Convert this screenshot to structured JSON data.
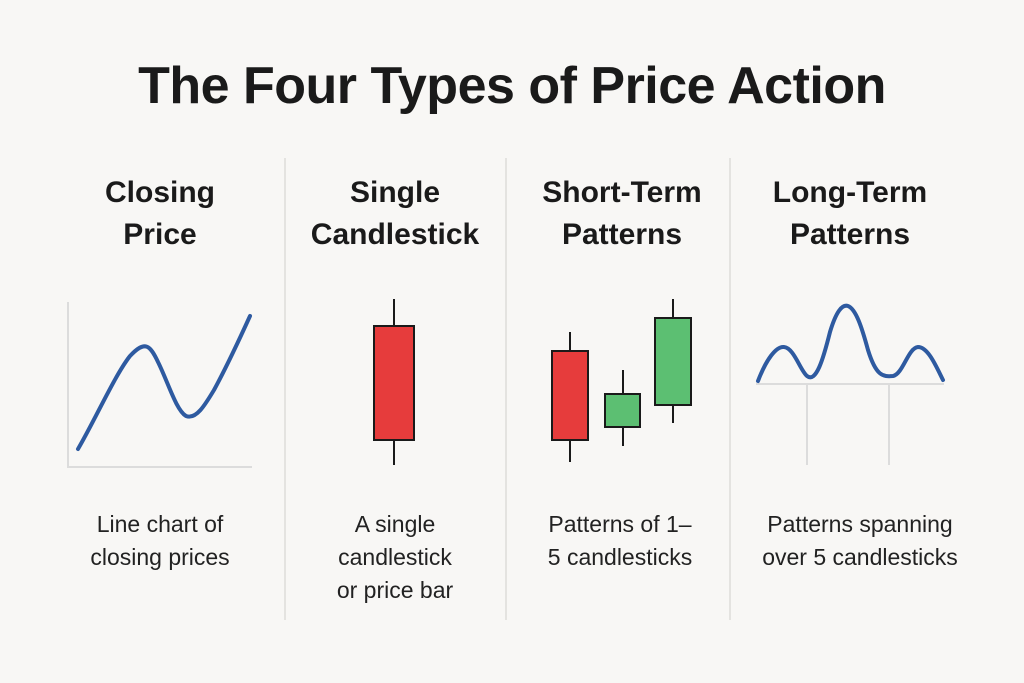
{
  "title": "The Four Types of Price Action",
  "columns": [
    {
      "heading": "Closing\nPrice",
      "description": "Line chart of\nclosing prices",
      "icon": "line-chart-icon"
    },
    {
      "heading": "Single\nCandlestick",
      "description": "A single\ncandlestick\nor price bar",
      "icon": "single-candlestick-icon"
    },
    {
      "heading": "Short-Term\nPatterns",
      "description": "Patterns of 1–\n5 candlesticks",
      "icon": "candlestick-pattern-icon"
    },
    {
      "heading": "Long-Term\nPatterns",
      "description": "Patterns spanning\nover 5 candlesticks",
      "icon": "wave-pattern-icon"
    }
  ],
  "colors": {
    "line": "#2e5aa0",
    "bearish": "#e63c3c",
    "bullish": "#5cbf72",
    "outline": "#1a1a1a",
    "axis": "#dcdcdc",
    "divider": "#e4e3e0"
  }
}
